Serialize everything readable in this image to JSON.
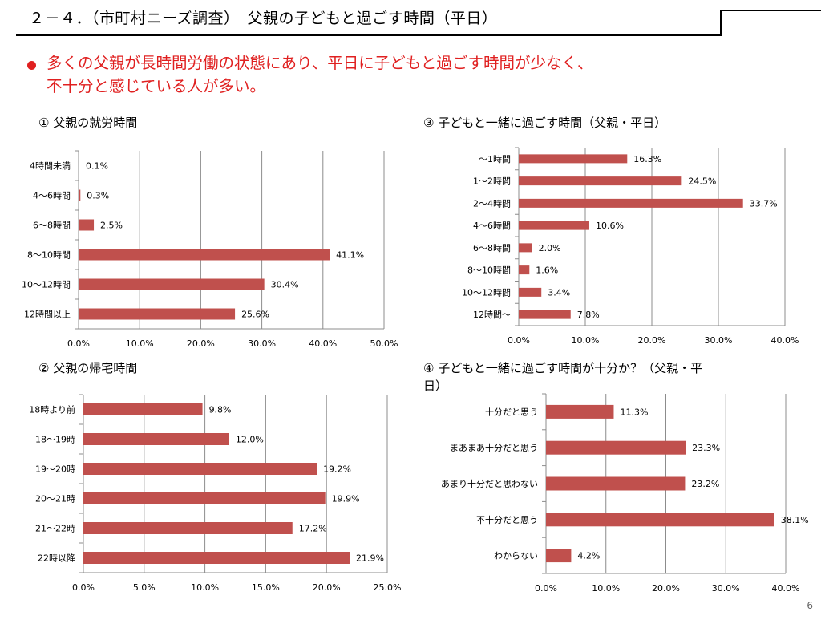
{
  "header": {
    "title": "２－４．（市町村ニーズ調査）　父親の子どもと過ごす時間（平日）"
  },
  "summary": {
    "line1": "多くの父親が長時間労働の状態にあり、平日に子どもと過ごす時間が少なく、",
    "line2": "不十分と感じている人が多い。"
  },
  "page_number": "6",
  "bar_color": "#c0504d",
  "chart_data": [
    {
      "type": "bar",
      "orientation": "horizontal",
      "title": "① 父親の就労時間",
      "categories": [
        "4時間未満",
        "4～6時間",
        "6～8時間",
        "8～10時間",
        "10～12時間",
        "12時間以上"
      ],
      "values": [
        0.1,
        0.3,
        2.5,
        41.1,
        30.4,
        25.6
      ],
      "value_labels": [
        "0.1%",
        "0.3%",
        "2.5%",
        "41.1%",
        "30.4%",
        "25.6%"
      ],
      "xlim": [
        0,
        50
      ],
      "ticks": [
        "0.0%",
        "10.0%",
        "20.0%",
        "30.0%",
        "40.0%",
        "50.0%"
      ],
      "grid": true
    },
    {
      "type": "bar",
      "orientation": "horizontal",
      "title": "② 父親の帰宅時間",
      "categories": [
        "18時より前",
        "18～19時",
        "19～20時",
        "20～21時",
        "21～22時",
        "22時以降"
      ],
      "values": [
        9.8,
        12.0,
        19.2,
        19.9,
        17.2,
        21.9
      ],
      "value_labels": [
        "9.8%",
        "12.0%",
        "19.2%",
        "19.9%",
        "17.2%",
        "21.9%"
      ],
      "xlim": [
        0,
        25
      ],
      "ticks": [
        "0.0%",
        "5.0%",
        "10.0%",
        "15.0%",
        "20.0%",
        "25.0%"
      ],
      "grid": true
    },
    {
      "type": "bar",
      "orientation": "horizontal",
      "title": "③ 子どもと一緒に過ごす時間（父親・平日）",
      "categories": [
        "～1時間",
        "1～2時間",
        "2～4時間",
        "4～6時間",
        "6～8時間",
        "8～10時間",
        "10～12時間",
        "12時間～"
      ],
      "values": [
        16.3,
        24.5,
        33.7,
        10.6,
        2.0,
        1.6,
        3.4,
        7.8
      ],
      "value_labels": [
        "16.3%",
        "24.5%",
        "33.7%",
        "10.6%",
        "2.0%",
        "1.6%",
        "3.4%",
        "7.8%"
      ],
      "xlim": [
        0,
        40
      ],
      "ticks": [
        "0.0%",
        "10.0%",
        "20.0%",
        "30.0%",
        "40.0%"
      ],
      "grid": true
    },
    {
      "type": "bar",
      "orientation": "horizontal",
      "title_line1": "④ 子どもと一緒に過ごす時間が十分か？（父親・平",
      "title_line2": "日）",
      "categories": [
        "十分だと思う",
        "まあまあ十分だと思う",
        "あまり十分だと思わない",
        "不十分だと思う",
        "わからない"
      ],
      "values": [
        11.3,
        23.3,
        23.2,
        38.1,
        4.2
      ],
      "value_labels": [
        "11.3%",
        "23.3%",
        "23.2%",
        "38.1%",
        "4.2%"
      ],
      "xlim": [
        0,
        40
      ],
      "ticks": [
        "0.0%",
        "10.0%",
        "20.0%",
        "30.0%",
        "40.0%"
      ],
      "grid": true
    }
  ]
}
